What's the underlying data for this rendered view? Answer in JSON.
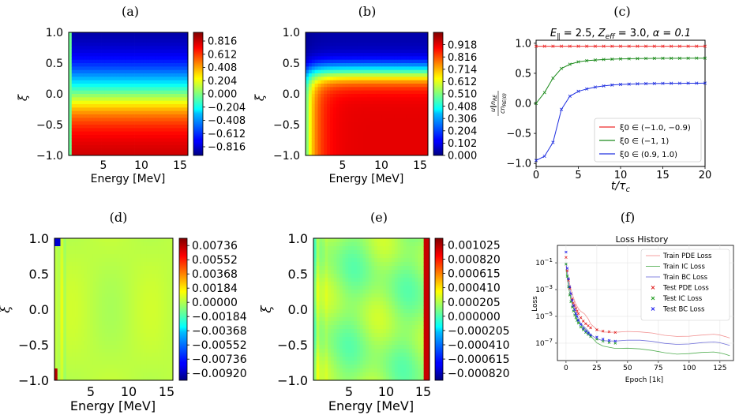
{
  "panels": [
    {
      "tag": "(a)",
      "type": "heatmap",
      "pattern": "a",
      "xlabel": "Energy [MeV]",
      "ylabel": "ξ",
      "xlim": [
        0.5,
        16
      ],
      "ylim": [
        -1,
        1
      ],
      "xticks": [
        "5",
        "10",
        "15"
      ],
      "yticks": [
        "1.0",
        "0.5",
        "0.0",
        "−0.5",
        "−1.0"
      ],
      "cbar": {
        "ticks": [
          "0.816",
          "0.612",
          "0.408",
          "0.204",
          "0.000",
          "−0.204",
          "−0.408",
          "−0.612",
          "−0.816"
        ],
        "range": [
          -0.95,
          0.95
        ]
      }
    },
    {
      "tag": "(b)",
      "type": "heatmap",
      "pattern": "b",
      "xlabel": "Energy [MeV]",
      "ylabel": "ξ",
      "xlim": [
        0.5,
        16
      ],
      "ylim": [
        -1,
        1
      ],
      "xticks": [
        "5",
        "10",
        "15"
      ],
      "yticks": [
        "1.0",
        "0.5",
        "0.0",
        "−0.5",
        "−1.0"
      ],
      "cbar": {
        "ticks": [
          "0.918",
          "0.816",
          "0.714",
          "0.612",
          "0.510",
          "0.408",
          "0.306",
          "0.204",
          "0.102",
          "0.000"
        ],
        "range": [
          0,
          1.02
        ]
      }
    },
    {
      "tag": "(d)",
      "type": "heatmap",
      "pattern": "d",
      "xlabel": "Energy [MeV]",
      "ylabel": "ξ",
      "xlim": [
        0.5,
        16
      ],
      "ylim": [
        -1,
        1
      ],
      "xticks": [
        "5",
        "10",
        "15"
      ],
      "yticks": [
        "1.0",
        "0.5",
        "0.0",
        "−0.5",
        "−1.0"
      ],
      "cbar": {
        "ticks": [
          "0.00736",
          "0.00552",
          "0.00368",
          "0.00184",
          "0.00000",
          "−0.00184",
          "−0.00368",
          "−0.00552",
          "−0.00736",
          "−0.00920"
        ],
        "range": [
          -0.0101,
          0.0083
        ]
      }
    },
    {
      "tag": "(e)",
      "type": "heatmap",
      "pattern": "e",
      "xlabel": "Energy [MeV]",
      "ylabel": "ξ",
      "xlim": [
        0.5,
        16
      ],
      "ylim": [
        -1,
        1
      ],
      "xticks": [
        "5",
        "10",
        "15"
      ],
      "yticks": [
        "1.0",
        "0.5",
        "0.0",
        "−0.5",
        "−1.0"
      ],
      "cbar": {
        "ticks": [
          "0.001025",
          "0.000820",
          "0.000615",
          "0.000410",
          "0.000205",
          "0.000000",
          "−0.000205",
          "−0.000410",
          "−0.000615",
          "−0.000820"
        ],
        "range": [
          -0.00092,
          0.00112
        ]
      }
    }
  ],
  "panel_c": {
    "tag": "(c)",
    "title": "E∥ = 2.5, Zeff = 3.0, α = 0.1",
    "title_parts": {
      "e": "E",
      "e_sub": "∥",
      "e_val": " = 2.5, ",
      "z": "Z",
      "z_sub": "eff",
      "z_val": " = 3.0, ",
      "alpha": "α = 0.1"
    },
    "ylabel_num": "u∥n",
    "ylabel_num_sub": "RE",
    "ylabel_den": "cn",
    "ylabel_den_sub": "RE(0)",
    "xlabel": "t/τc",
    "xlabel_main": "t/τ",
    "xlabel_sub": "c",
    "xticks": [
      "0",
      "5",
      "10",
      "15",
      "20"
    ],
    "yticks": [
      "1.0",
      "0.5",
      "0.0",
      "−0.5",
      "−1.0"
    ]
  },
  "panel_f": {
    "tag": "(f)",
    "title": "Loss History",
    "xlabel": "Epoch [1k]",
    "ylabel": "Loss",
    "xticks": [
      "0",
      "25",
      "50",
      "75",
      "100",
      "125"
    ],
    "yticks": [
      {
        "base": "10",
        "exp": "−1"
      },
      {
        "base": "10",
        "exp": "−3"
      },
      {
        "base": "10",
        "exp": "−5"
      },
      {
        "base": "10",
        "exp": "−7"
      }
    ]
  },
  "chart_data": [
    {
      "type": "line",
      "panel": "(c)",
      "title": "E∥ = 2.5, Zeff = 3.0, α = 0.1",
      "xlabel": "t/τc",
      "ylabel": "u∥ n_RE / (c n_RE(0))",
      "xlim": [
        0,
        20
      ],
      "ylim": [
        -1.05,
        1.05
      ],
      "legend_position": "bottom-right",
      "series": [
        {
          "name": "ξ0 ∈ (−1.0, −0.9)",
          "color": "#ee2b2b",
          "x": [
            0,
            1,
            2,
            3,
            4,
            5,
            6,
            7,
            8,
            9,
            10,
            11,
            12,
            13,
            14,
            15,
            16,
            17,
            18,
            19,
            20
          ],
          "y": [
            0.95,
            0.95,
            0.95,
            0.95,
            0.95,
            0.95,
            0.95,
            0.95,
            0.95,
            0.95,
            0.95,
            0.95,
            0.95,
            0.95,
            0.95,
            0.95,
            0.95,
            0.95,
            0.95,
            0.95,
            0.95
          ]
        },
        {
          "name": "ξ0 ∈ (−1, 1)",
          "color": "#1c8b1c",
          "x": [
            0,
            1,
            2,
            3,
            4,
            5,
            6,
            7,
            8,
            9,
            10,
            11,
            12,
            13,
            14,
            15,
            16,
            17,
            18,
            19,
            20
          ],
          "y": [
            0.0,
            0.18,
            0.42,
            0.58,
            0.65,
            0.69,
            0.71,
            0.72,
            0.73,
            0.735,
            0.74,
            0.742,
            0.745,
            0.747,
            0.748,
            0.75,
            0.75,
            0.75,
            0.751,
            0.752,
            0.752
          ]
        },
        {
          "name": "ξ0 ∈ (0.9, 1.0)",
          "color": "#2030e0",
          "x": [
            0,
            1,
            2,
            3,
            4,
            5,
            6,
            7,
            8,
            9,
            10,
            11,
            12,
            13,
            14,
            15,
            16,
            17,
            18,
            19,
            20
          ],
          "y": [
            -0.95,
            -0.88,
            -0.65,
            -0.1,
            0.12,
            0.2,
            0.24,
            0.27,
            0.29,
            0.305,
            0.315,
            0.32,
            0.325,
            0.328,
            0.33,
            0.332,
            0.333,
            0.334,
            0.335,
            0.335,
            0.336
          ]
        }
      ]
    },
    {
      "type": "line",
      "panel": "(f)",
      "title": "Loss History",
      "xlabel": "Epoch [1k]",
      "ylabel": "Loss",
      "yscale": "log",
      "xlim": [
        -7,
        136
      ],
      "ylim_log10": [
        -8.3,
        0.3
      ],
      "legend_position": "top-right",
      "grid": true,
      "series": [
        {
          "name": "Train PDE Loss",
          "color": "#f08080",
          "style": "line",
          "x": [
            0,
            2,
            4,
            6,
            8,
            10,
            12,
            15,
            18,
            20,
            25,
            30,
            40,
            50,
            60,
            70,
            80,
            90,
            100,
            110,
            120,
            125,
            130,
            133
          ],
          "log10_y": [
            -1.2,
            -2.2,
            -3.0,
            -3.6,
            -4.0,
            -4.3,
            -4.6,
            -4.9,
            -5.3,
            -5.6,
            -5.9,
            -6.05,
            -6.15,
            -6.2,
            -6.28,
            -6.3,
            -6.35,
            -6.38,
            -6.42,
            -6.45,
            -6.45,
            -6.47,
            -6.48,
            -6.5
          ]
        },
        {
          "name": "Train IC Loss",
          "color": "#33a033",
          "style": "line",
          "x": [
            0,
            2,
            4,
            6,
            8,
            10,
            12,
            15,
            18,
            20,
            25,
            30,
            40,
            50,
            60,
            70,
            80,
            90,
            100,
            110,
            120,
            125,
            130,
            133
          ],
          "log10_y": [
            -1.5,
            -2.8,
            -3.8,
            -4.4,
            -4.9,
            -5.3,
            -5.6,
            -6.0,
            -6.3,
            -6.5,
            -6.9,
            -7.1,
            -7.35,
            -7.45,
            -7.55,
            -7.6,
            -7.65,
            -7.7,
            -7.72,
            -7.75,
            -7.78,
            -7.8,
            -7.8,
            -7.82
          ]
        },
        {
          "name": "Train BC Loss",
          "color": "#5b5bd6",
          "style": "line",
          "x": [
            0,
            2,
            4,
            6,
            8,
            10,
            12,
            15,
            18,
            20,
            25,
            30,
            40,
            50,
            60,
            70,
            80,
            90,
            100,
            110,
            120,
            125,
            130,
            133
          ],
          "log10_y": [
            -1.0,
            -2.4,
            -3.4,
            -4.2,
            -4.7,
            -5.1,
            -5.5,
            -5.9,
            -6.2,
            -6.4,
            -6.6,
            -6.7,
            -6.8,
            -6.85,
            -6.9,
            -6.92,
            -6.95,
            -6.97,
            -7.0,
            -7.02,
            -7.03,
            -7.04,
            -7.05,
            -7.05
          ]
        },
        {
          "name": "Test PDE Loss",
          "color": "#e02020",
          "style": "marker",
          "x": [
            0,
            1,
            2,
            3,
            4,
            5,
            6,
            7,
            8,
            9,
            10,
            12,
            14,
            16,
            18,
            20,
            25,
            30,
            35,
            40
          ],
          "log10_y": [
            -0.6,
            -1.6,
            -2.3,
            -2.9,
            -3.3,
            -3.7,
            -4.0,
            -4.2,
            -4.4,
            -4.6,
            -4.8,
            -5.1,
            -5.35,
            -5.55,
            -5.7,
            -5.85,
            -6.0,
            -6.1,
            -6.15,
            -6.2
          ]
        },
        {
          "name": "Test IC Loss",
          "color": "#1a9a1a",
          "style": "marker",
          "x": [
            0,
            1,
            2,
            3,
            4,
            5,
            6,
            7,
            8,
            9,
            10,
            12,
            14,
            16,
            18,
            20,
            25,
            30,
            35,
            40
          ],
          "log10_y": [
            -1.1,
            -2.0,
            -2.8,
            -3.4,
            -3.9,
            -4.3,
            -4.6,
            -4.9,
            -5.1,
            -5.3,
            -5.5,
            -5.8,
            -6.0,
            -6.2,
            -6.35,
            -6.5,
            -6.7,
            -6.85,
            -6.95,
            -7.0
          ]
        },
        {
          "name": "Test BC Loss",
          "color": "#1a1aee",
          "style": "marker",
          "x": [
            0,
            1,
            2,
            3,
            4,
            5,
            6,
            7,
            8,
            9,
            10,
            12,
            14,
            16,
            18,
            20,
            25,
            30,
            35,
            40
          ],
          "log10_y": [
            -0.2,
            -1.4,
            -2.2,
            -2.8,
            -3.3,
            -3.8,
            -4.2,
            -4.5,
            -4.8,
            -5.0,
            -5.3,
            -5.6,
            -5.9,
            -6.1,
            -6.25,
            -6.4,
            -6.55,
            -6.7,
            -6.8,
            -6.85
          ]
        }
      ]
    }
  ]
}
